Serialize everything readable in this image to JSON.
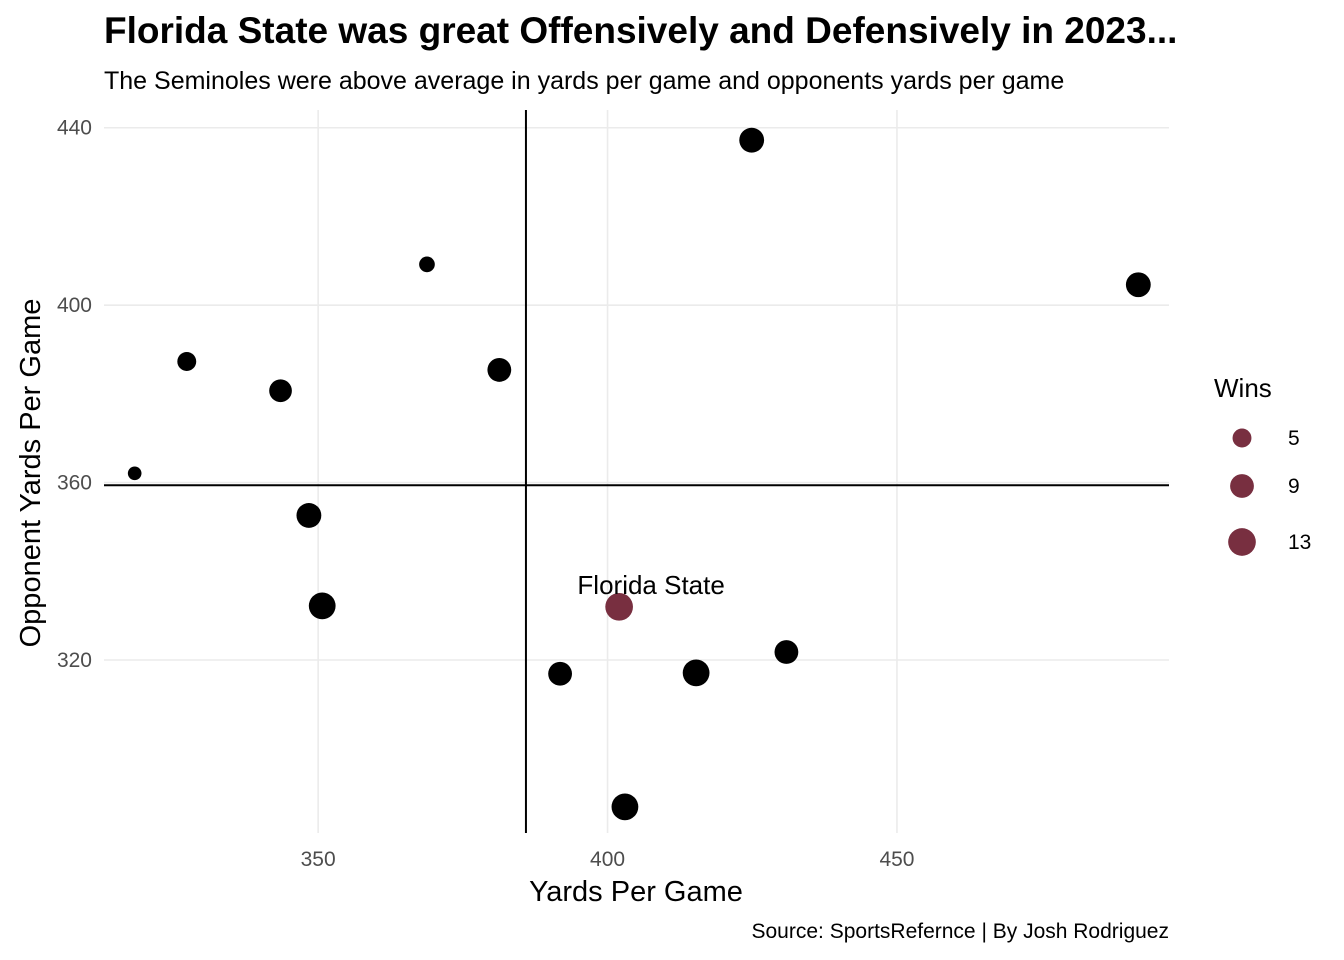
{
  "chart_data": {
    "type": "scatter",
    "title": "Florida State was great Offensively and Defensively in 2023...",
    "subtitle": "The Seminoles were above average in yards per game and opponents yards per game",
    "caption": "Source: SportsRefernce | By Josh Rodriguez",
    "xlabel": "Yards Per Game",
    "ylabel": "Opponent Yards Per Game",
    "xlim": [
      313,
      497
    ],
    "ylim": [
      281,
      444
    ],
    "xticks": [
      350,
      400,
      450
    ],
    "yticks": [
      320,
      360,
      400,
      440
    ],
    "grid": true,
    "reference_lines": {
      "x": 385.9,
      "y": 359.4
    },
    "highlight_color": "#782F40",
    "point_color": "#000000",
    "highlight_label": "Florida State",
    "size_legend": {
      "title": "Wins",
      "values": [
        5,
        9,
        13
      ],
      "color": "#782F40",
      "placement": "right"
    },
    "points": [
      {
        "x": 424.9,
        "y": 437.2,
        "wins": 10
      },
      {
        "x": 491.7,
        "y": 404.6,
        "wins": 10
      },
      {
        "x": 368.8,
        "y": 409.2,
        "wins": 3
      },
      {
        "x": 327.3,
        "y": 387.3,
        "wins": 5
      },
      {
        "x": 343.5,
        "y": 380.7,
        "wins": 8
      },
      {
        "x": 381.3,
        "y": 385.4,
        "wins": 9
      },
      {
        "x": 318.3,
        "y": 362.1,
        "wins": 2
      },
      {
        "x": 348.4,
        "y": 352.6,
        "wins": 10
      },
      {
        "x": 350.7,
        "y": 332.2,
        "wins": 12
      },
      {
        "x": 402.0,
        "y": 332.0,
        "wins": 13,
        "label": "Florida State",
        "highlight": true
      },
      {
        "x": 391.8,
        "y": 316.9,
        "wins": 9
      },
      {
        "x": 415.3,
        "y": 317.1,
        "wins": 12
      },
      {
        "x": 430.9,
        "y": 321.8,
        "wins": 9
      },
      {
        "x": 403.0,
        "y": 286.9,
        "wins": 12
      }
    ]
  }
}
